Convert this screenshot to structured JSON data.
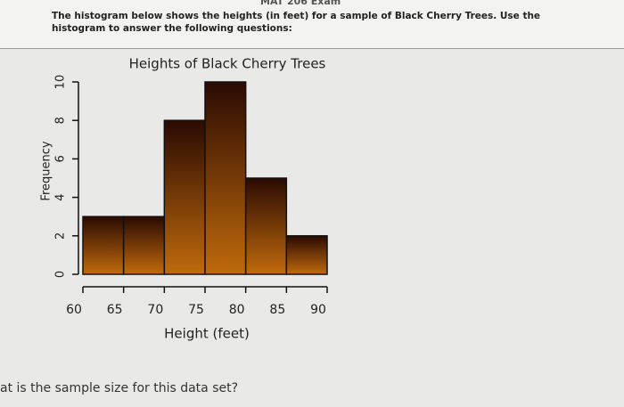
{
  "header": {
    "exam": "MAT 206 Exam",
    "instructions": "The histogram below shows the heights (in feet) for a sample of Black Cherry Trees. Use the histogram to answer the following questions:"
  },
  "question": "at is the sample size for this data set?",
  "chart_data": {
    "type": "histogram",
    "title": "Heights of Black Cherry Trees",
    "xlabel": "Height (feet)",
    "ylabel": "Frequency",
    "bins": [
      60,
      65,
      70,
      75,
      80,
      85,
      90
    ],
    "values": [
      3,
      3,
      8,
      10,
      5,
      2
    ],
    "color": "#c06a0c",
    "xlim": [
      60,
      90
    ],
    "xticks": [
      60,
      65,
      70,
      75,
      80,
      85,
      90
    ],
    "ylim": [
      0,
      10
    ],
    "yticks": [
      0,
      2,
      4,
      6,
      8,
      10
    ]
  }
}
